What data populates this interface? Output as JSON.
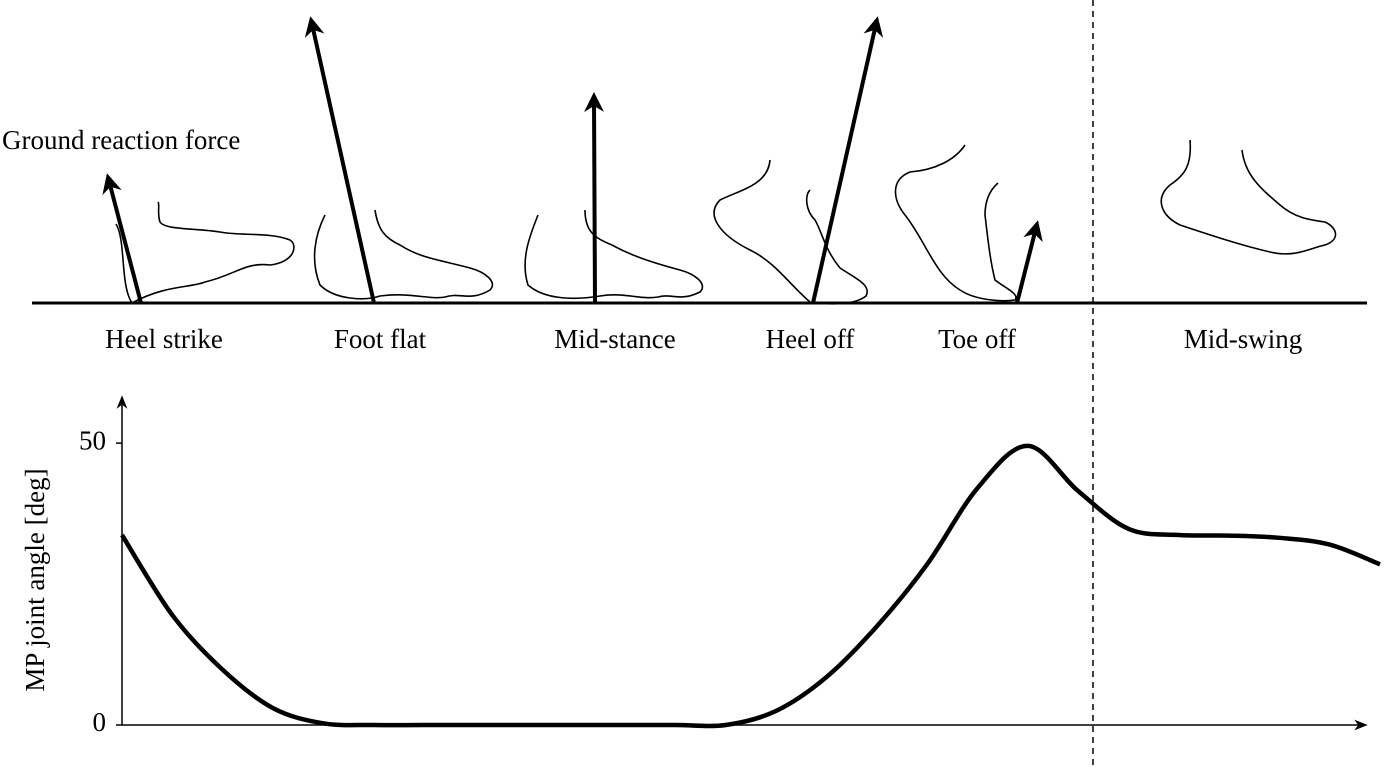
{
  "annotation": "Ground reaction force",
  "phases": [
    "Heel strike",
    "Foot flat",
    "Mid-stance",
    "Heel off",
    "Toe off",
    "Mid-swing"
  ],
  "chart_data": {
    "type": "line",
    "y_label": "MP joint angle [deg]",
    "categories": [
      null,
      null,
      null,
      null,
      null,
      null,
      null,
      null,
      null,
      null,
      null,
      null,
      null,
      null,
      null,
      null,
      null,
      null,
      null,
      null,
      null,
      null,
      null,
      null,
      null,
      null
    ],
    "values": [
      33.7,
      19.5,
      9.8,
      3,
      0.3,
      0,
      0,
      0,
      0,
      0,
      0,
      0,
      0,
      2.5,
      8.5,
      17.5,
      28.5,
      42,
      49.5,
      41.5,
      34.8,
      33.7,
      33.6,
      33.2,
      32,
      28.5
    ],
    "color": "#000000",
    "ylim": [
      0,
      58
    ],
    "yticks": [
      0,
      50
    ]
  }
}
